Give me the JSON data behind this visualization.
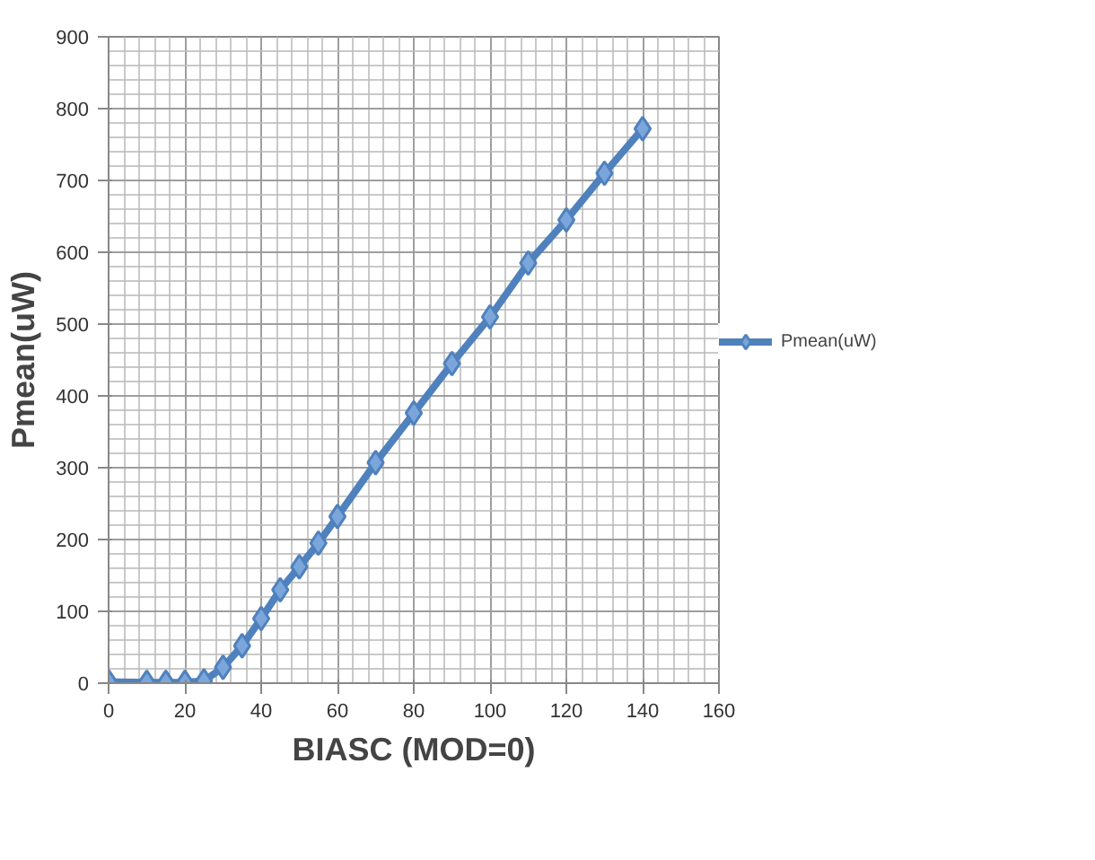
{
  "chart_data": {
    "type": "line",
    "xlabel": "BIASC (MOD=0)",
    "ylabel": "Pmean(uW)",
    "x": [
      0,
      10,
      15,
      20,
      25,
      30,
      35,
      40,
      45,
      50,
      55,
      60,
      70,
      80,
      90,
      100,
      110,
      120,
      130,
      140
    ],
    "series": [
      {
        "name": "Pmean(uW)",
        "color": "#4f81bd",
        "values": [
          2,
          1,
          1,
          1,
          3,
          22,
          52,
          90,
          130,
          162,
          195,
          232,
          307,
          376,
          445,
          510,
          585,
          645,
          710,
          772
        ]
      }
    ],
    "xlim": [
      0,
      160
    ],
    "xticks": [
      0,
      20,
      40,
      60,
      80,
      100,
      120,
      140,
      160
    ],
    "ylim": [
      0,
      900
    ],
    "yticks": [
      0,
      100,
      200,
      300,
      400,
      500,
      600,
      700,
      800,
      900
    ],
    "grid": true,
    "legend": "right",
    "marker": "diamond",
    "line_style": "solid"
  }
}
